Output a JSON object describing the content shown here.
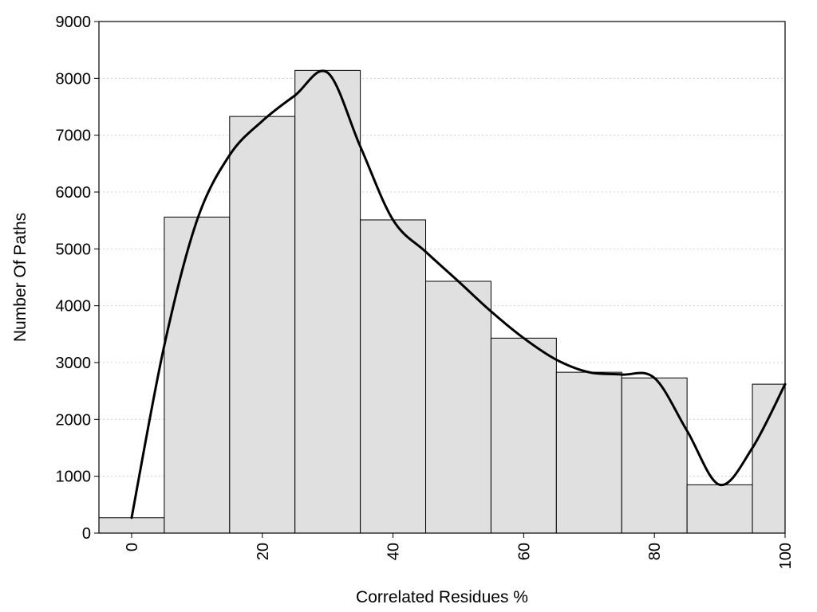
{
  "chart_data": {
    "type": "bar",
    "title": "",
    "xlabel": "Correlated Residues %",
    "ylabel": "Number Of Paths",
    "xlim": [
      -5,
      100
    ],
    "ylim": [
      0,
      9000
    ],
    "x_ticks": [
      "0",
      "20",
      "40",
      "60",
      "80",
      "100"
    ],
    "y_ticks": [
      "0",
      "1000",
      "2000",
      "3000",
      "4000",
      "5000",
      "6000",
      "7000",
      "8000",
      "9000"
    ],
    "grid": "horizontal dotted",
    "bin_width": 10,
    "categories": [
      0,
      10,
      20,
      30,
      40,
      50,
      60,
      70,
      80,
      90,
      100
    ],
    "values": [
      270,
      5560,
      7330,
      8140,
      5510,
      4430,
      3430,
      2830,
      2730,
      850,
      2620
    ],
    "smooth_curve": {
      "x": [
        0,
        5,
        10,
        15,
        20,
        25,
        30,
        35,
        40,
        45,
        50,
        55,
        60,
        65,
        70,
        75,
        80,
        85,
        90,
        95,
        100
      ],
      "y": [
        270,
        3300,
        5500,
        6650,
        7250,
        7700,
        8100,
        6800,
        5510,
        4950,
        4430,
        3900,
        3430,
        3050,
        2830,
        2790,
        2730,
        1800,
        850,
        1500,
        2620
      ]
    },
    "colors": {
      "bar_fill": "#e0e0e0",
      "bar_stroke": "#000000",
      "curve": "#000000"
    }
  }
}
